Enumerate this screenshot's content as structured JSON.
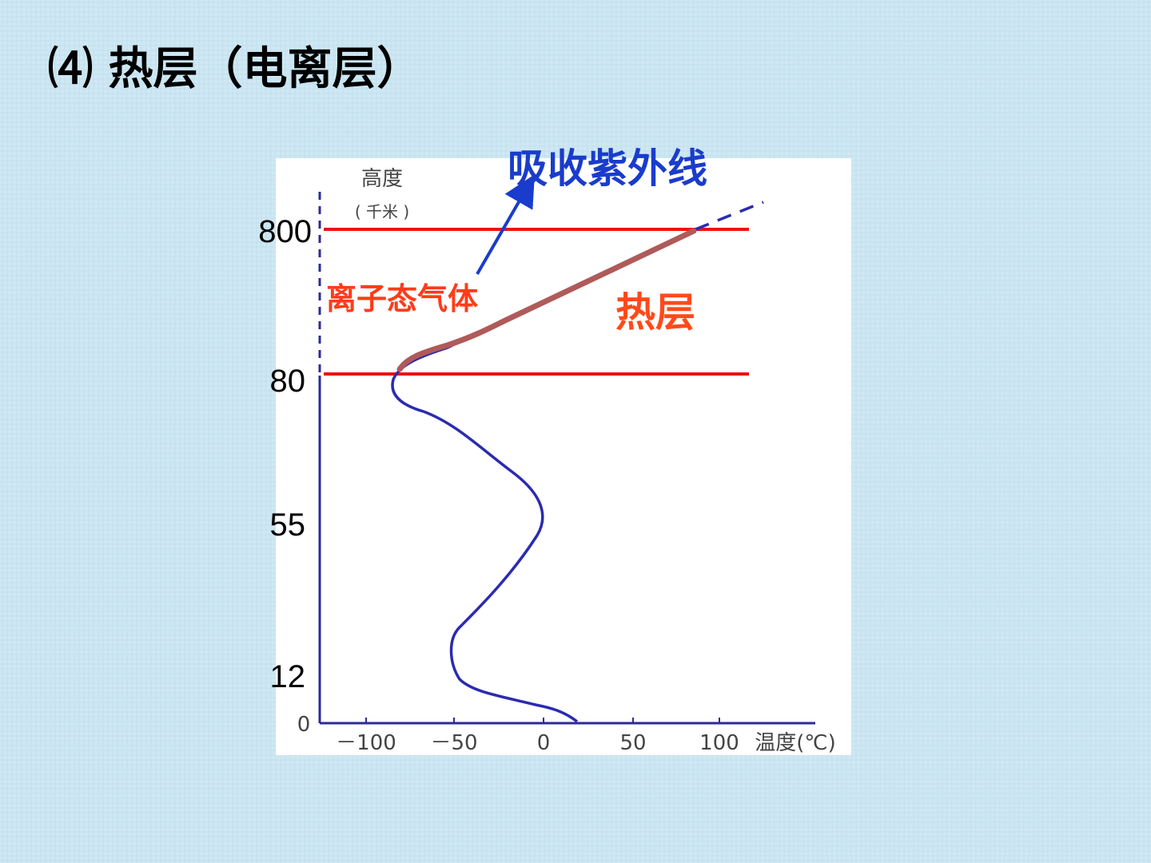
{
  "title": "⑷ 热层（电离层）",
  "annotations": {
    "uv": "吸收紫外线",
    "ions": "离子态气体",
    "layer": "热层"
  },
  "altitude_labels": [
    "800",
    "80",
    "55",
    "12"
  ],
  "figure": {
    "y_axis_title": "高度",
    "y_axis_unit": "( 千米 )",
    "origin": "0",
    "x_ticks": [
      "－100",
      "－50",
      "0",
      "50",
      "100"
    ],
    "x_axis_title": "温度(℃)"
  }
}
